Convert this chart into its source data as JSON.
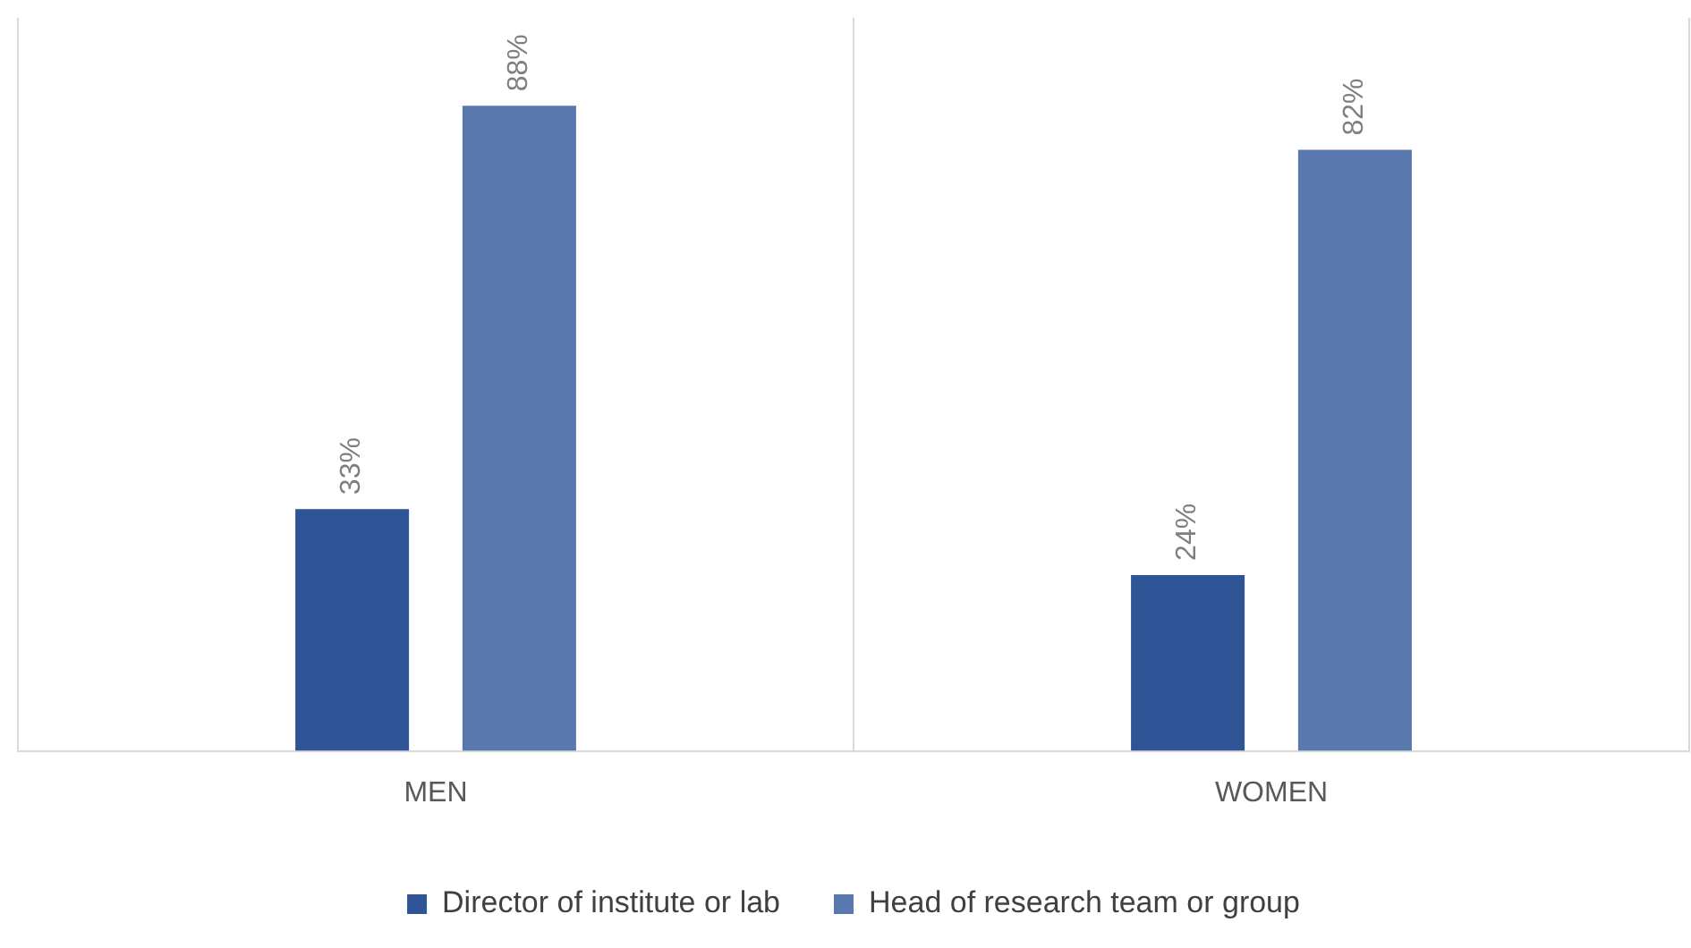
{
  "chart_data": {
    "type": "bar",
    "categories": [
      "MEN",
      "WOMEN"
    ],
    "series": [
      {
        "name": "Director of institute or lab",
        "color": "#2f5597",
        "values": [
          33,
          24
        ],
        "value_labels": [
          "33%",
          "24%"
        ]
      },
      {
        "name": "Head of research team or group",
        "color": "#5878ae",
        "values": [
          88,
          82
        ],
        "value_labels": [
          "88%",
          "82%"
        ]
      }
    ],
    "ylim": [
      0,
      100
    ],
    "grid": "x",
    "legend": "bottom"
  }
}
